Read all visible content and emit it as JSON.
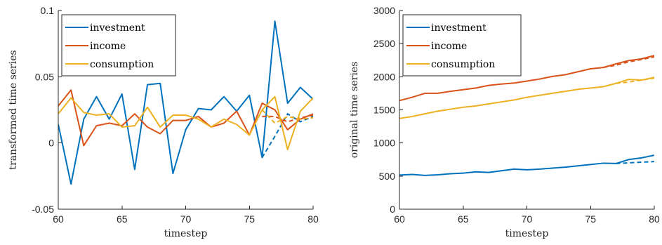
{
  "colors": {
    "investment": "#0072BD",
    "income": "#D95319",
    "consumption": "#EDB120"
  },
  "chart_data": [
    {
      "type": "line",
      "xlabel": "timestep",
      "ylabel": "transformed time series",
      "xlim": [
        60,
        80
      ],
      "ylim": [
        -0.05,
        0.1
      ],
      "xticks": [
        60,
        65,
        70,
        75,
        80
      ],
      "xtick_labels": [
        "60",
        "65",
        "70",
        "75",
        "80"
      ],
      "yticks": [
        -0.05,
        0,
        0.05,
        0.1
      ],
      "ytick_labels": [
        "-0.05",
        "0",
        "0.05",
        "0.1"
      ],
      "legend": [
        "investment",
        "income",
        "consumption"
      ],
      "legend_position": "top-left",
      "series": [
        {
          "name": "investment",
          "x": [
            60,
            61,
            62,
            63,
            64,
            65,
            66,
            67,
            68,
            69,
            70,
            71,
            72,
            73,
            74,
            75,
            76,
            77,
            78,
            79,
            80
          ],
          "values": [
            0.014,
            -0.031,
            0.018,
            0.035,
            0.018,
            0.037,
            -0.02,
            0.044,
            0.045,
            -0.023,
            0.01,
            0.026,
            0.025,
            0.035,
            0.024,
            0.036,
            -0.011,
            0.092,
            0.03,
            0.042,
            0.033
          ],
          "forecast_x": [
            76,
            77,
            78,
            79,
            80
          ],
          "forecast_values": [
            -0.011,
            0.005,
            0.022,
            0.016,
            0.02
          ]
        },
        {
          "name": "income",
          "x": [
            60,
            61,
            62,
            63,
            64,
            65,
            66,
            67,
            68,
            69,
            70,
            71,
            72,
            73,
            74,
            75,
            76,
            77,
            78,
            79,
            80
          ],
          "values": [
            0.028,
            0.04,
            -0.002,
            0.013,
            0.015,
            0.013,
            0.022,
            0.012,
            0.007,
            0.017,
            0.017,
            0.02,
            0.012,
            0.015,
            0.024,
            0.006,
            0.03,
            0.025,
            0.01,
            0.018,
            0.022
          ],
          "forecast_x": [
            76,
            77,
            78,
            79,
            80
          ],
          "forecast_values": [
            0.02,
            0.02,
            0.016,
            0.019,
            0.021
          ]
        },
        {
          "name": "consumption",
          "x": [
            60,
            61,
            62,
            63,
            64,
            65,
            66,
            67,
            68,
            69,
            70,
            71,
            72,
            73,
            74,
            75,
            76,
            77,
            78,
            79,
            80
          ],
          "values": [
            0.022,
            0.034,
            0.023,
            0.021,
            0.022,
            0.012,
            0.013,
            0.027,
            0.012,
            0.021,
            0.021,
            0.018,
            0.012,
            0.018,
            0.014,
            0.006,
            0.025,
            0.035,
            -0.005,
            0.024,
            0.034
          ],
          "forecast_x": [
            76,
            77,
            78,
            79,
            80
          ],
          "forecast_values": [
            0.025,
            0.015,
            0.02,
            0.018,
            0.019
          ]
        }
      ]
    },
    {
      "type": "line",
      "xlabel": "timestep",
      "ylabel": "original time series",
      "xlim": [
        60,
        80
      ],
      "ylim": [
        0,
        3000
      ],
      "xticks": [
        60,
        65,
        70,
        75,
        80
      ],
      "xtick_labels": [
        "60",
        "65",
        "70",
        "75",
        "80"
      ],
      "yticks": [
        0,
        500,
        1000,
        1500,
        2000,
        2500,
        3000
      ],
      "ytick_labels": [
        "0",
        "500",
        "1000",
        "1500",
        "2000",
        "2500",
        "3000"
      ],
      "legend": [
        "investment",
        "income",
        "consumption"
      ],
      "legend_position": "top-left",
      "series": [
        {
          "name": "investment",
          "x": [
            60,
            61,
            62,
            63,
            64,
            65,
            66,
            67,
            68,
            69,
            70,
            71,
            72,
            73,
            74,
            75,
            76,
            77,
            78,
            79,
            80
          ],
          "values": [
            515,
            525,
            510,
            520,
            535,
            545,
            565,
            555,
            580,
            605,
            595,
            605,
            620,
            635,
            655,
            675,
            695,
            690,
            750,
            775,
            815
          ],
          "forecast_x": [
            77,
            78,
            79,
            80
          ],
          "forecast_values": [
            690,
            700,
            710,
            720
          ]
        },
        {
          "name": "income",
          "x": [
            60,
            61,
            62,
            63,
            64,
            65,
            66,
            67,
            68,
            69,
            70,
            71,
            72,
            73,
            74,
            75,
            76,
            77,
            78,
            79,
            80
          ],
          "values": [
            1640,
            1690,
            1750,
            1750,
            1780,
            1805,
            1830,
            1870,
            1890,
            1905,
            1935,
            1965,
            2005,
            2030,
            2075,
            2120,
            2140,
            2195,
            2245,
            2270,
            2320
          ],
          "forecast_x": [
            76,
            77,
            78,
            79,
            80
          ],
          "forecast_values": [
            2140,
            2175,
            2225,
            2260,
            2300
          ]
        },
        {
          "name": "consumption",
          "x": [
            60,
            61,
            62,
            63,
            64,
            65,
            66,
            67,
            68,
            69,
            70,
            71,
            72,
            73,
            74,
            75,
            76,
            77,
            78,
            79,
            80
          ],
          "values": [
            1370,
            1400,
            1440,
            1480,
            1510,
            1540,
            1560,
            1590,
            1620,
            1650,
            1690,
            1720,
            1750,
            1780,
            1810,
            1830,
            1850,
            1900,
            1960,
            1950,
            1990
          ],
          "forecast_x": [
            77,
            78,
            79,
            80
          ],
          "forecast_values": [
            1900,
            1920,
            1950,
            1980
          ]
        }
      ]
    }
  ]
}
